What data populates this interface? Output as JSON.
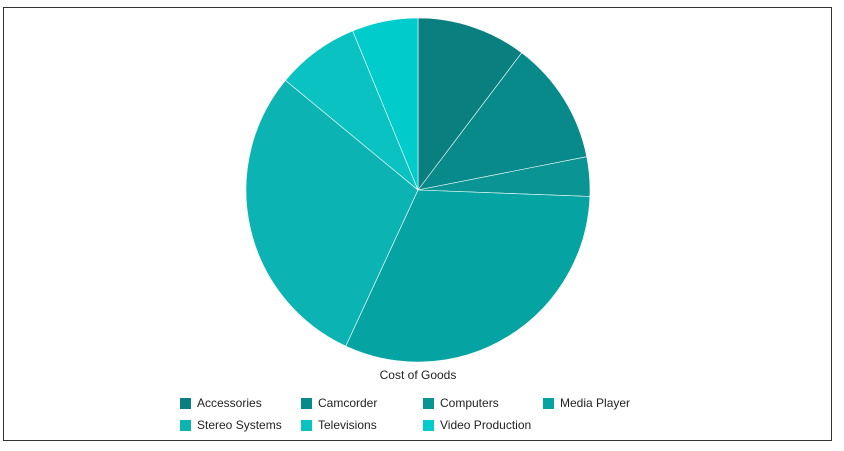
{
  "chart_data": {
    "type": "pie",
    "title": "Cost of Goods",
    "categories": [
      "Accessories",
      "Camcorder",
      "Computers",
      "Media Player",
      "Stereo Systems",
      "Televisions",
      "Video Production"
    ],
    "values": [
      10.3,
      11.6,
      3.7,
      31.3,
      29.1,
      7.8,
      6.2
    ],
    "colors": [
      "#0a7f7f",
      "#088a8a",
      "#0a9494",
      "#06a3a3",
      "#0cb3b3",
      "#0ac2c2",
      "#00cccc"
    ],
    "unit": "percent",
    "start_angle_deg": 0,
    "direction": "clockwise",
    "legend_position": "bottom"
  }
}
